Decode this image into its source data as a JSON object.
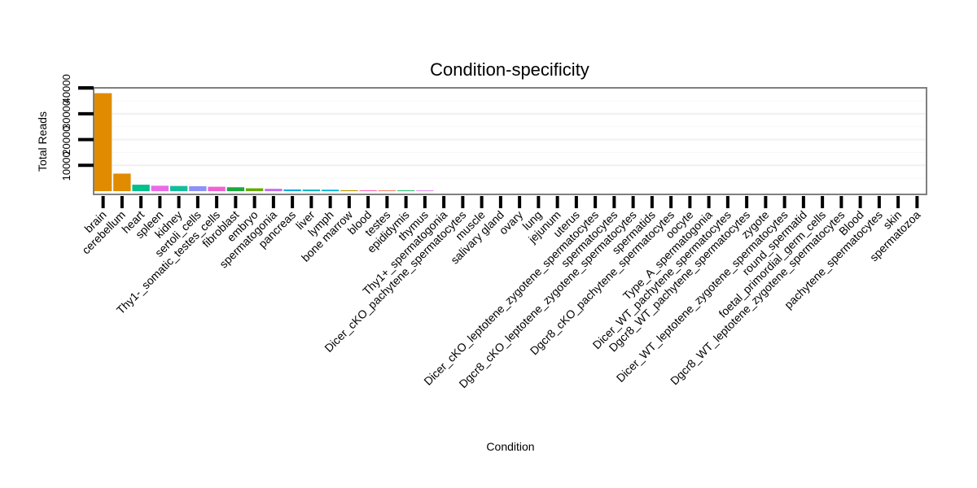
{
  "chart_data": {
    "type": "bar",
    "title": "Condition-specificity",
    "xlabel": "Condition",
    "ylabel": "Total Reads",
    "ylim": [
      0,
      40000
    ],
    "yticks": [
      10000,
      20000,
      30000,
      40000
    ],
    "ytick_labels": [
      "10000",
      "20000",
      "30000",
      "40000"
    ],
    "categories": [
      "brain",
      "cerebellum",
      "heart",
      "spleen",
      "kidney",
      "sertoli_cells",
      "Thy1-_somatic_testes_cells",
      "fibroblast",
      "embryo",
      "spermatogonia",
      "pancreas",
      "liver",
      "lymph",
      "bone marrow",
      "blood",
      "testes",
      "epididymis",
      "thymus",
      "Thy1+_spermatogonia",
      "Dicer_cKO_pachytene_spermatocytes",
      "muscle",
      "salivary gland",
      "ovary",
      "lung",
      "jejunum",
      "uterus",
      "Dicer_cKO_leptotene_zygotene_spermatocytes",
      "spermatocytes",
      "Dgcr8_cKO_leptotene_zygotene_spermatocytes",
      "spermatids",
      "Dgcr8_cKO_pachytene_spermatocytes",
      "oocyte",
      "Type_A_spermatogonia",
      "Dicer_WT_pachytene_spermatocytes",
      "Dgcr8_WT_pachytene_spermatocytes",
      "zygote",
      "Dicer_WT_leptotene_zygotene_spermatocytes",
      "round_spermatid",
      "foetal_primordial_germ_cells",
      "Dgcr8_WT_leptotene_zygotene_spermatocytes",
      "Blood",
      "pachytene_spermatocytes",
      "skin",
      "spermatozoa"
    ],
    "values": [
      38000,
      6800,
      2500,
      2100,
      2000,
      1900,
      1700,
      1500,
      1100,
      900,
      650,
      600,
      550,
      350,
      320,
      300,
      280,
      250,
      0,
      0,
      0,
      0,
      0,
      0,
      0,
      0,
      0,
      0,
      0,
      0,
      0,
      0,
      0,
      0,
      0,
      0,
      0,
      0,
      0,
      0,
      0,
      0,
      0,
      0
    ],
    "colors": [
      "#e08b00",
      "#e08b00",
      "#00c08b",
      "#e96be7",
      "#14bd9a",
      "#8c93f4",
      "#f062d4",
      "#1aab3c",
      "#65ab00",
      "#c96bf0",
      "#00a9e2",
      "#00b5c0",
      "#00b3d8",
      "#ba8f00",
      "#fc5fa8",
      "#ed7b5a",
      "#0db35a",
      "#d871f2",
      "#b0a000",
      "#999999",
      "#999999",
      "#999999",
      "#999999",
      "#999999",
      "#999999",
      "#999999",
      "#999999",
      "#999999",
      "#999999",
      "#999999",
      "#999999",
      "#999999",
      "#999999",
      "#999999",
      "#999999",
      "#999999",
      "#999999",
      "#999999",
      "#999999",
      "#999999",
      "#999999",
      "#999999",
      "#999999",
      "#999999"
    ],
    "grid": true,
    "legend": "none"
  }
}
